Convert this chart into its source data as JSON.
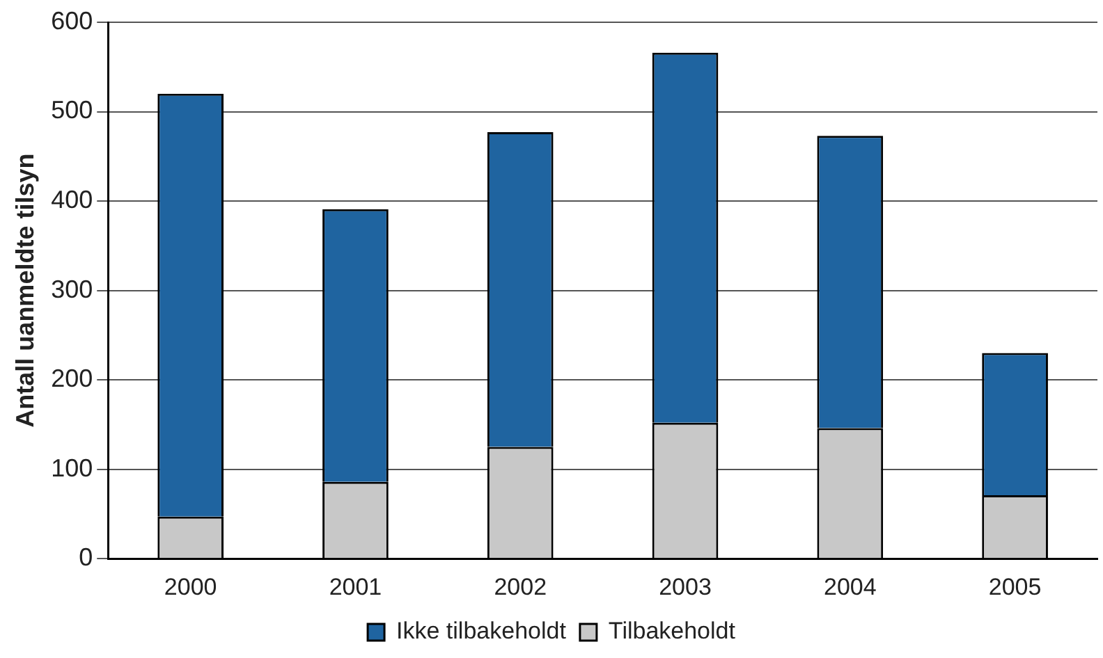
{
  "chart_data": {
    "type": "bar",
    "stacked": true,
    "ylabel": "Antall uanmeldte tilsyn",
    "categories": [
      "2000",
      "2001",
      "2002",
      "2003",
      "2004",
      "2005"
    ],
    "series": [
      {
        "name": "Tilbakeholdt",
        "color": "#c8c8c8",
        "values": [
          47,
          86,
          125,
          152,
          146,
          71
        ]
      },
      {
        "name": "Ikke tilbakeholdt",
        "color": "#1f64a0",
        "values": [
          473,
          305,
          352,
          414,
          327,
          159
        ]
      }
    ],
    "ylim": [
      0,
      600
    ],
    "yticks": [
      0,
      100,
      200,
      300,
      400,
      500,
      600
    ],
    "grid": "y",
    "legend": "bottom"
  }
}
